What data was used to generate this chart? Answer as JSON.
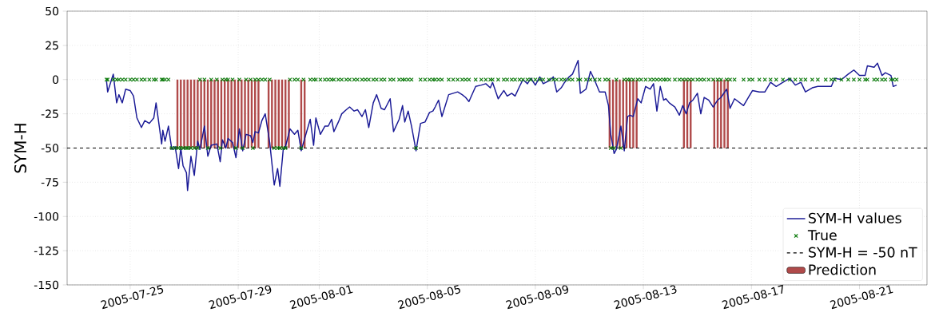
{
  "chart_data": {
    "type": "line",
    "ylabel": "SYM-H",
    "x": [
      "2005-07-24T03:00",
      "2005-07-24T04:00",
      "2005-07-24T09:00",
      "2005-07-24T12:00",
      "2005-07-24T14:00",
      "2005-07-24T17:00",
      "2005-07-24T20:00",
      "2005-07-25T00:00",
      "2005-07-25T03:00",
      "2005-07-25T06:00",
      "2005-07-25T10:00",
      "2005-07-25T13:00",
      "2005-07-25T17:00",
      "2005-07-25T21:00",
      "2005-07-25T23:00",
      "2005-07-26T04:00",
      "2005-07-26T05:00",
      "2005-07-26T07:00",
      "2005-07-26T10:00",
      "2005-07-26T13:00",
      "2005-07-26T16:00",
      "2005-07-26T19:00",
      "2005-07-26T21:00",
      "2005-07-26T23:00",
      "2005-07-27T02:00",
      "2005-07-27T03:00",
      "2005-07-27T06:00",
      "2005-07-27T09:00",
      "2005-07-27T12:00",
      "2005-07-27T14:00",
      "2005-07-27T18:00",
      "2005-07-27T21:00",
      "2005-07-28T00:00",
      "2005-07-28T05:00",
      "2005-07-28T08:00",
      "2005-07-28T10:00",
      "2005-07-28T13:00",
      "2005-07-28T15:00",
      "2005-07-28T19:00",
      "2005-07-28T22:00",
      "2005-07-29T01:00",
      "2005-07-29T04:00",
      "2005-07-29T07:00",
      "2005-07-29T11:00",
      "2005-07-29T13:00",
      "2005-07-29T15:00",
      "2005-07-29T18:00",
      "2005-07-29T21:00",
      "2005-07-30T00:00",
      "2005-07-30T04:00",
      "2005-07-30T08:00",
      "2005-07-30T11:00",
      "2005-07-30T13:00",
      "2005-07-30T16:00",
      "2005-07-30T18:00",
      "2005-07-30T22:00",
      "2005-07-31T02:00",
      "2005-07-31T05:00",
      "2005-07-31T08:00",
      "2005-07-31T10:00",
      "2005-07-31T16:00",
      "2005-07-31T19:00",
      "2005-07-31T21:00",
      "2005-08-01T01:00",
      "2005-08-01T05:00",
      "2005-08-01T08:00",
      "2005-08-01T11:00",
      "2005-08-01T13:00",
      "2005-08-01T17:00",
      "2005-08-01T20:00",
      "2005-08-02T00:00",
      "2005-08-02T03:00",
      "2005-08-02T07:00",
      "2005-08-02T10:00",
      "2005-08-02T14:00",
      "2005-08-02T17:00",
      "2005-08-02T20:00",
      "2005-08-03T00:00",
      "2005-08-03T03:00",
      "2005-08-03T07:00",
      "2005-08-03T10:00",
      "2005-08-03T15:00",
      "2005-08-03T18:00",
      "2005-08-03T23:00",
      "2005-08-04T02:00",
      "2005-08-04T04:00",
      "2005-08-04T07:00",
      "2005-08-04T10:00",
      "2005-08-04T14:00",
      "2005-08-04T18:00",
      "2005-08-04T22:00",
      "2005-08-05T02:00",
      "2005-08-05T05:00",
      "2005-08-05T07:00",
      "2005-08-05T10:00",
      "2005-08-05T13:00",
      "2005-08-05T19:00",
      "2005-08-05T23:00",
      "2005-08-06T03:00",
      "2005-08-06T07:00",
      "2005-08-06T10:00",
      "2005-08-06T13:00",
      "2005-08-06T19:00",
      "2005-08-07T00:00",
      "2005-08-07T04:00",
      "2005-08-07T08:00",
      "2005-08-07T10:00",
      "2005-08-07T15:00",
      "2005-08-07T20:00",
      "2005-08-07T23:00",
      "2005-08-08T03:00",
      "2005-08-08T06:00",
      "2005-08-08T10:00",
      "2005-08-08T13:00",
      "2005-08-08T17:00",
      "2005-08-08T20:00",
      "2005-08-09T00:00",
      "2005-08-09T04:00",
      "2005-08-09T07:00",
      "2005-08-09T12:00",
      "2005-08-09T16:00",
      "2005-08-09T19:00",
      "2005-08-09T23:00",
      "2005-08-10T02:00",
      "2005-08-10T06:00",
      "2005-08-10T09:00",
      "2005-08-10T14:00",
      "2005-08-10T16:00",
      "2005-08-10T21:00",
      "2005-08-11T01:00",
      "2005-08-11T05:00",
      "2005-08-11T09:00",
      "2005-08-11T14:00",
      "2005-08-11T17:00",
      "2005-08-11T19:00",
      "2005-08-11T22:00",
      "2005-08-12T00:00",
      "2005-08-12T04:00",
      "2005-08-12T07:00",
      "2005-08-12T10:00",
      "2005-08-12T12:00",
      "2005-08-12T15:00",
      "2005-08-12T19:00",
      "2005-08-12T22:00",
      "2005-08-13T02:00",
      "2005-08-13T06:00",
      "2005-08-13T09:00",
      "2005-08-13T12:00",
      "2005-08-13T15:00",
      "2005-08-13T18:00",
      "2005-08-13T20:00",
      "2005-08-13T23:00",
      "2005-08-14T04:00",
      "2005-08-14T08:00",
      "2005-08-14T11:00",
      "2005-08-14T14:00",
      "2005-08-14T17:00",
      "2005-08-14T20:00",
      "2005-08-15T00:00",
      "2005-08-15T03:00",
      "2005-08-15T06:00",
      "2005-08-15T10:00",
      "2005-08-15T14:00",
      "2005-08-15T18:00",
      "2005-08-15T21:00",
      "2005-08-16T02:00",
      "2005-08-16T05:00",
      "2005-08-16T09:00",
      "2005-08-16T17:00",
      "2005-08-16T22:00",
      "2005-08-17T01:00",
      "2005-08-17T07:00",
      "2005-08-17T12:00",
      "2005-08-17T17:00",
      "2005-08-17T22:00",
      "2005-08-18T04:00",
      "2005-08-18T10:00",
      "2005-08-18T15:00",
      "2005-08-18T20:00",
      "2005-08-19T00:00",
      "2005-08-19T06:00",
      "2005-08-19T11:00",
      "2005-08-19T18:00",
      "2005-08-19T23:00",
      "2005-08-20T02:00",
      "2005-08-20T08:00",
      "2005-08-20T14:00",
      "2005-08-20T19:00",
      "2005-08-21T00:00",
      "2005-08-21T05:00",
      "2005-08-21T07:00",
      "2005-08-21T13:00",
      "2005-08-21T16:00",
      "2005-08-21T20:00",
      "2005-08-21T23:00",
      "2005-08-22T04:00",
      "2005-08-22T06:00",
      "2005-08-22T09:00"
    ],
    "series": [
      {
        "name": "SYM-H values",
        "color": "#1a1a96",
        "values": [
          -1,
          -9,
          4,
          -17,
          -11,
          -17,
          -7,
          -8,
          -12,
          -28,
          -35,
          -30,
          -32,
          -28,
          -17,
          -47,
          -37,
          -45,
          -34,
          -51,
          -49,
          -65,
          -50,
          -63,
          -68,
          -81,
          -56,
          -70,
          -45,
          -51,
          -34,
          -56,
          -48,
          -47,
          -60,
          -44,
          -50,
          -43,
          -46,
          -57,
          -36,
          -52,
          -40,
          -41,
          -46,
          -38,
          -39,
          -30,
          -25,
          -46,
          -77,
          -65,
          -78,
          -51,
          -49,
          -36,
          -40,
          -37,
          -52,
          -46,
          -29,
          -48,
          -28,
          -40,
          -34,
          -34,
          -29,
          -38,
          -31,
          -25,
          -22,
          -20,
          -23,
          -22,
          -27,
          -22,
          -35,
          -17,
          -11,
          -21,
          -22,
          -14,
          -38,
          -29,
          -19,
          -31,
          -23,
          -34,
          -52,
          -32,
          -31,
          -24,
          -23,
          -20,
          -15,
          -27,
          -11,
          -10,
          -9,
          -11,
          -13,
          -16,
          -5,
          -4,
          -3,
          -6,
          -2,
          -14,
          -8,
          -12,
          -10,
          -12,
          -5,
          0,
          -3,
          1,
          -4,
          2,
          -3,
          -1,
          2,
          -9,
          -6,
          -2,
          2,
          4,
          14,
          -10,
          -7,
          6,
          -1,
          -9,
          -9,
          -19,
          -40,
          -54,
          -51,
          -34,
          -52,
          -27,
          -26,
          -27,
          -14,
          -17,
          -5,
          -7,
          -3,
          -23,
          -5,
          -15,
          -14,
          -17,
          -20,
          -26,
          -19,
          -25,
          -17,
          -15,
          -10,
          -25,
          -13,
          -15,
          -20,
          -15,
          -13,
          -7,
          -21,
          -14,
          -19,
          -12,
          -8,
          -9,
          -9,
          -2,
          -5,
          -2,
          1,
          -4,
          -2,
          -9,
          -6,
          -5,
          -5,
          -5,
          1,
          0,
          4,
          7,
          3,
          3,
          10,
          9,
          12,
          3,
          5,
          3,
          -5,
          -4
        ]
      },
      {
        "name": "True",
        "type": "scatter",
        "color": "#0a7a0a",
        "marker": "cross",
        "values": [
          0,
          0,
          0,
          0,
          0,
          0,
          0,
          0,
          0,
          0,
          0,
          0,
          0,
          0,
          0,
          0,
          0,
          0,
          0,
          -50,
          -50,
          -50,
          -50,
          -50,
          -50,
          -50,
          -50,
          -50,
          -50,
          0,
          0,
          -50,
          0,
          0,
          -50,
          0,
          0,
          0,
          0,
          -50,
          0,
          -50,
          0,
          0,
          -50,
          0,
          0,
          0,
          0,
          0,
          -50,
          -50,
          -50,
          -50,
          -50,
          0,
          0,
          0,
          -50,
          0,
          0,
          0,
          0,
          0,
          0,
          0,
          0,
          0,
          0,
          0,
          0,
          0,
          0,
          0,
          0,
          0,
          0,
          0,
          0,
          0,
          0,
          0,
          0,
          0,
          0,
          0,
          0,
          0,
          -50,
          0,
          0,
          0,
          0,
          0,
          0,
          0,
          0,
          0,
          0,
          0,
          0,
          0,
          0,
          0,
          0,
          0,
          0,
          0,
          0,
          0,
          0,
          0,
          0,
          0,
          0,
          0,
          0,
          0,
          0,
          0,
          0,
          0,
          0,
          0,
          0,
          0,
          0,
          0,
          0,
          0,
          0,
          0,
          0,
          0,
          -50,
          -50,
          0,
          -50,
          0,
          0,
          0,
          0,
          0,
          0,
          0,
          0,
          0,
          0,
          0,
          0,
          0,
          0,
          0,
          0,
          0,
          0,
          0,
          0,
          0,
          0,
          0,
          0,
          0,
          0,
          0,
          0,
          0,
          0,
          0,
          0,
          0,
          0,
          0,
          0,
          0,
          0,
          0,
          0,
          0,
          0,
          0,
          0,
          0,
          0,
          0,
          0,
          0,
          0,
          0,
          0,
          0,
          0,
          0,
          0,
          0,
          0,
          0,
          0
        ]
      },
      {
        "name": "Prediction",
        "type": "bar",
        "color": "#b04a4a",
        "x": [
          "2005-07-26T18:00",
          "2005-07-26T21:00",
          "2005-07-27T00:00",
          "2005-07-27T03:00",
          "2005-07-27T06:00",
          "2005-07-27T09:00",
          "2005-07-27T12:00",
          "2005-07-27T15:00",
          "2005-07-27T18:00",
          "2005-07-27T21:00",
          "2005-07-28T00:00",
          "2005-07-28T03:00",
          "2005-07-28T06:00",
          "2005-07-28T09:00",
          "2005-07-28T12:00",
          "2005-07-28T15:00",
          "2005-07-28T18:00",
          "2005-07-28T21:00",
          "2005-07-29T00:00",
          "2005-07-29T03:00",
          "2005-07-29T06:00",
          "2005-07-29T09:00",
          "2005-07-29T12:00",
          "2005-07-29T15:00",
          "2005-07-29T18:00",
          "2005-07-30T03:00",
          "2005-07-30T06:00",
          "2005-07-30T09:00",
          "2005-07-30T12:00",
          "2005-07-30T15:00",
          "2005-07-30T18:00",
          "2005-07-30T21:00",
          "2005-07-31T08:00",
          "2005-07-31T11:00",
          "2005-08-11T18:00",
          "2005-08-11T21:00",
          "2005-08-12T00:00",
          "2005-08-12T03:00",
          "2005-08-12T06:00",
          "2005-08-12T09:00",
          "2005-08-12T12:00",
          "2005-08-12T15:00",
          "2005-08-12T18:00",
          "2005-08-14T12:00",
          "2005-08-14T15:00",
          "2005-08-14T18:00",
          "2005-08-15T15:00",
          "2005-08-15T18:00",
          "2005-08-15T21:00",
          "2005-08-16T00:00",
          "2005-08-16T03:00"
        ],
        "values": [
          -50,
          -50,
          -50,
          -50,
          -50,
          -50,
          -50,
          -50,
          -50,
          -50,
          -50,
          -50,
          -50,
          -50,
          -50,
          -50,
          -50,
          -50,
          -50,
          -50,
          -50,
          -50,
          -50,
          -50,
          -50,
          -50,
          -50,
          -50,
          -50,
          -50,
          -50,
          -50,
          -50,
          -50,
          -50,
          -50,
          -50,
          -50,
          -50,
          -50,
          -50,
          -50,
          -50,
          -50,
          -50,
          -50,
          -50,
          -50,
          -50,
          -50,
          -50
        ]
      }
    ],
    "ref_lines": [
      {
        "axis": "y",
        "value": -50,
        "label": "SYM-H = -50 nT",
        "color": "#000000",
        "line_style": "dashed"
      }
    ],
    "xlim": [
      "2005-07-22T16:00",
      "2005-08-23T12:00"
    ],
    "xticks": [
      "2005-07-25",
      "2005-07-29",
      "2005-08-01",
      "2005-08-05",
      "2005-08-09",
      "2005-08-13",
      "2005-08-17",
      "2005-08-21"
    ],
    "ylim": [
      -150,
      50
    ],
    "yticks": [
      -150,
      -125,
      -100,
      -75,
      -50,
      -25,
      0,
      25,
      50
    ],
    "grid": true,
    "legend": "bottom right"
  }
}
